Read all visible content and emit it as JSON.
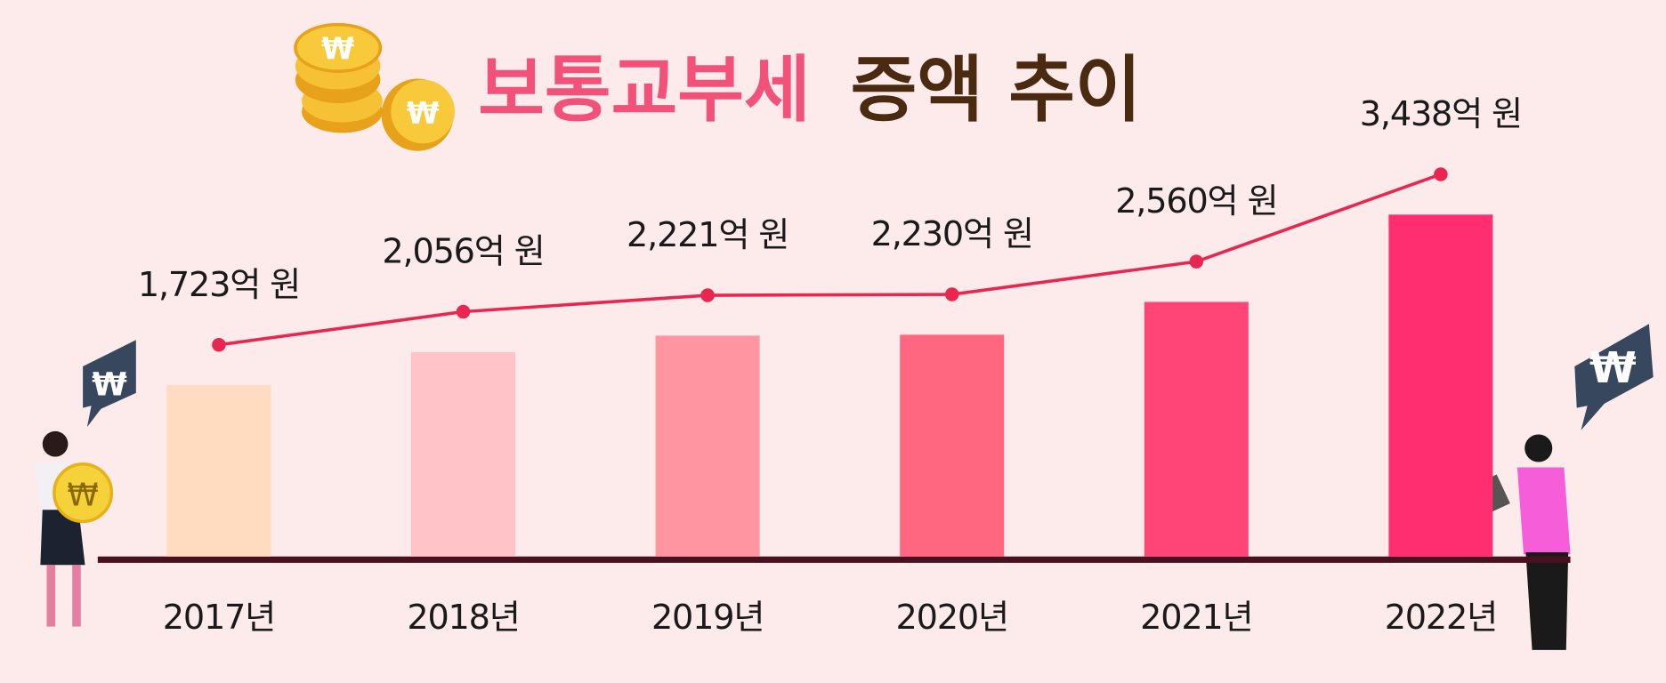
{
  "chart_data": {
    "type": "bar-line",
    "title": {
      "highlight": "보통교부세",
      "rest": "증액 추이"
    },
    "categories": [
      "2017년",
      "2018년",
      "2019년",
      "2020년",
      "2021년",
      "2022년"
    ],
    "values": [
      1723,
      2056,
      2221,
      2230,
      2560,
      3438
    ],
    "value_labels": [
      "1,723억 원",
      "2,056억 원",
      "2,221억 원",
      "2,230억 원",
      "2,560억 원",
      "3,438억 원"
    ],
    "bar_colors": [
      "#ffdcc0",
      "#ffc3c8",
      "#ff95a0",
      "#ff6680",
      "#ff4478",
      "#ff2e70"
    ],
    "line_color": "#e8264f"
  }
}
